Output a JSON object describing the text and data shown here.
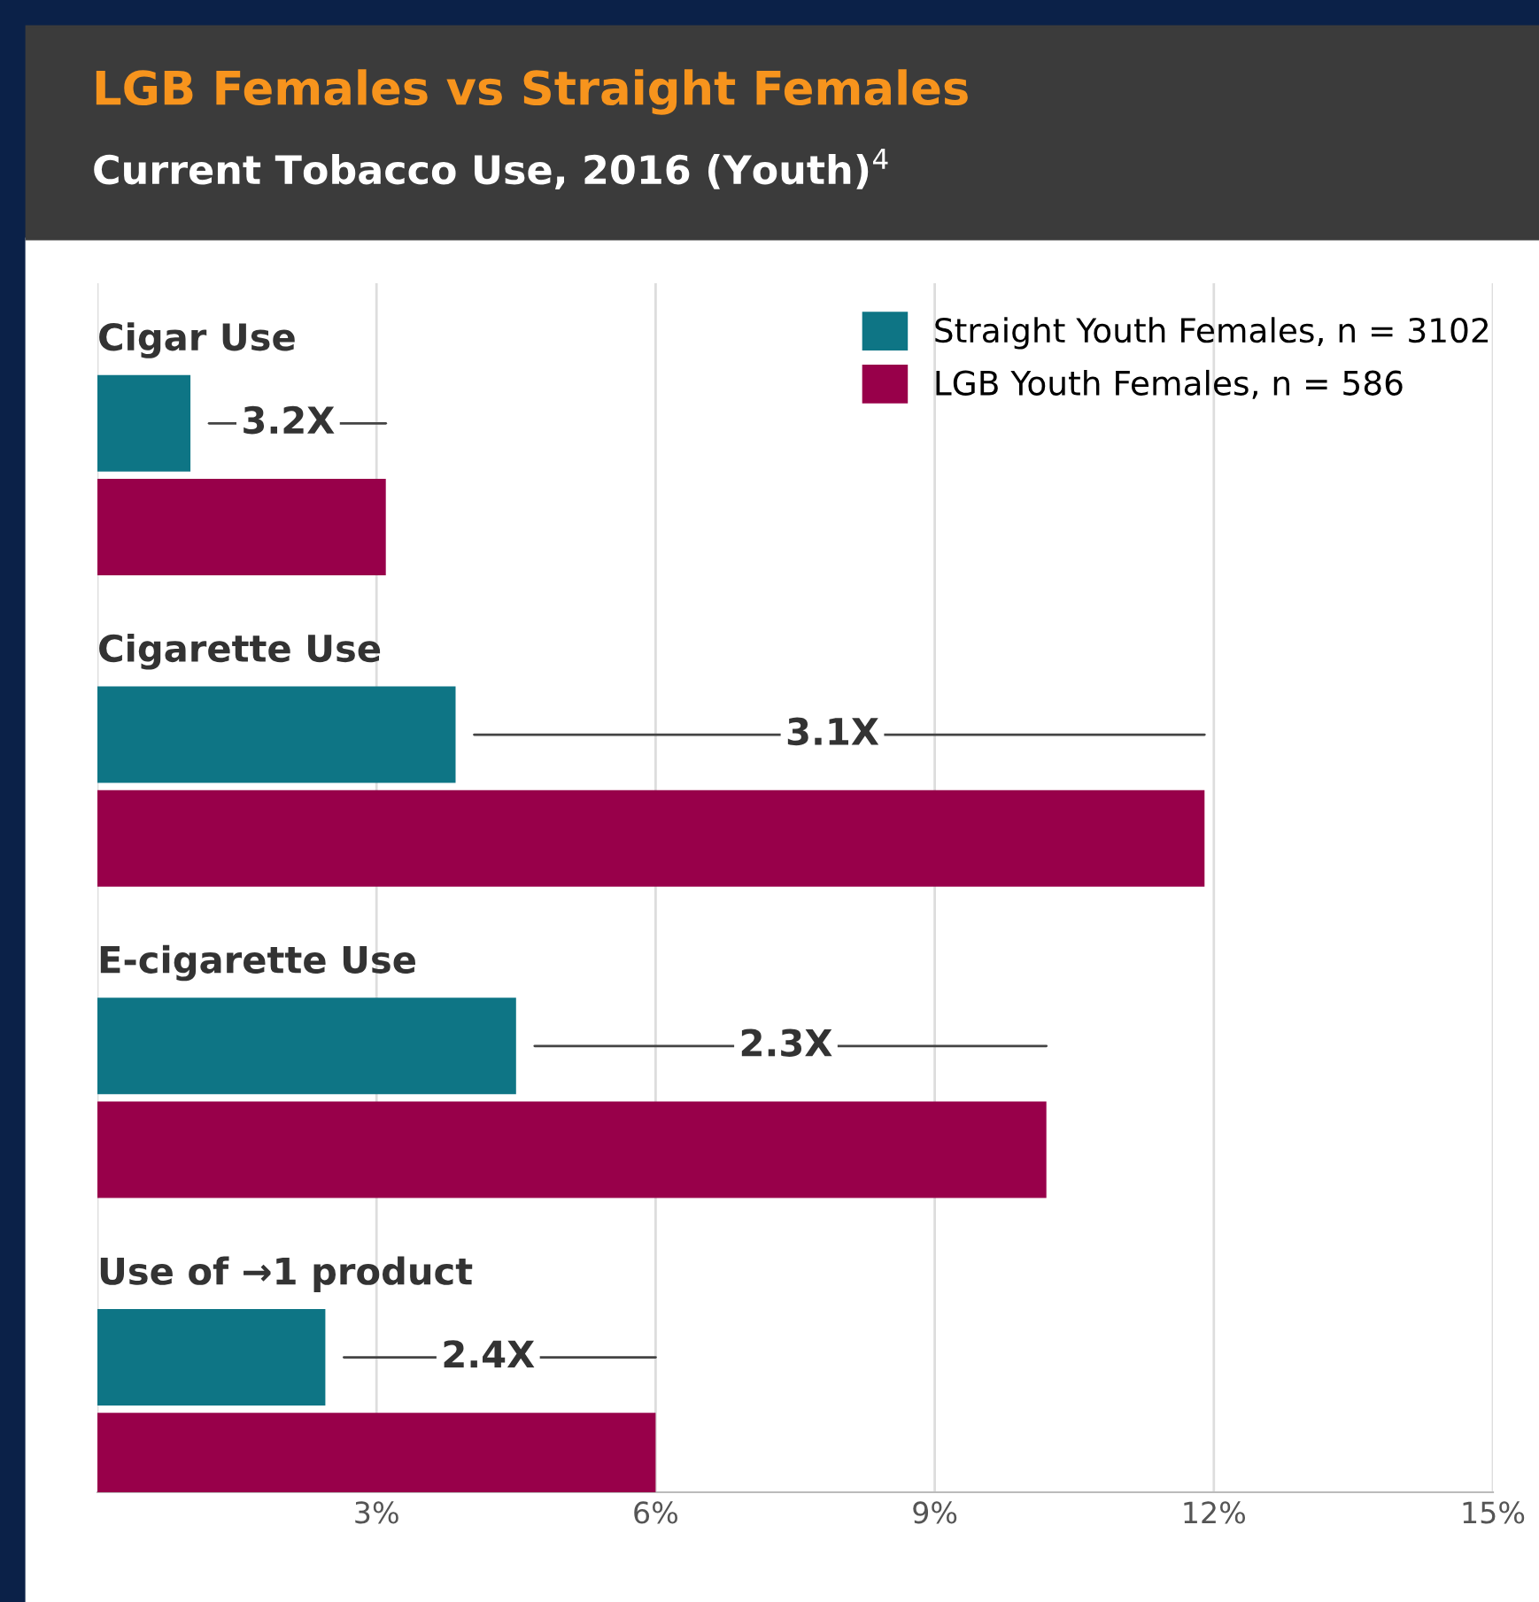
{
  "chart_data": {
    "type": "bar",
    "orientation": "horizontal",
    "title": "LGB Females vs Straight Females",
    "subtitle": "Current Tobacco Use, 2016 (Youth)$^{4}$",
    "categories": [
      "Cigar Use",
      "Cigarette Use",
      "E-cigarette Use",
      "Use of →1 product"
    ],
    "series": [
      {
        "name": "Straight Youth Females, n = 3102",
        "color": "#0e7585",
        "values": [
          1.0,
          3.85,
          4.5,
          2.45
        ]
      },
      {
        "name": "LGB Youth Females, n = 586",
        "color": "#98004a",
        "values": [
          3.1,
          11.9,
          10.2,
          6.0
        ]
      }
    ],
    "xlim": [
      0,
      15
    ],
    "xticks": [
      {
        "value": 0,
        "label": null
      },
      {
        "value": 3,
        "label": "3%"
      },
      {
        "value": 6,
        "label": "6%"
      },
      {
        "value": 9,
        "label": "9%"
      },
      {
        "value": 12,
        "label": "12%"
      },
      {
        "value": 15,
        "label": "15%"
      }
    ],
    "annotations": [
      {
        "text": "3.2X",
        "x": 2.05,
        "y": "Cigar Use"
      },
      {
        "text": "3.1X",
        "x": 7.9,
        "y": "Cigarette Use"
      },
      {
        "text": "2.3X",
        "x": 7.4,
        "y": "E-cigarette Use"
      },
      {
        "text": "2.4X",
        "x": 4.2,
        "y": "Use of →1 product"
      }
    ],
    "grid": "x",
    "legend": "top right"
  }
}
